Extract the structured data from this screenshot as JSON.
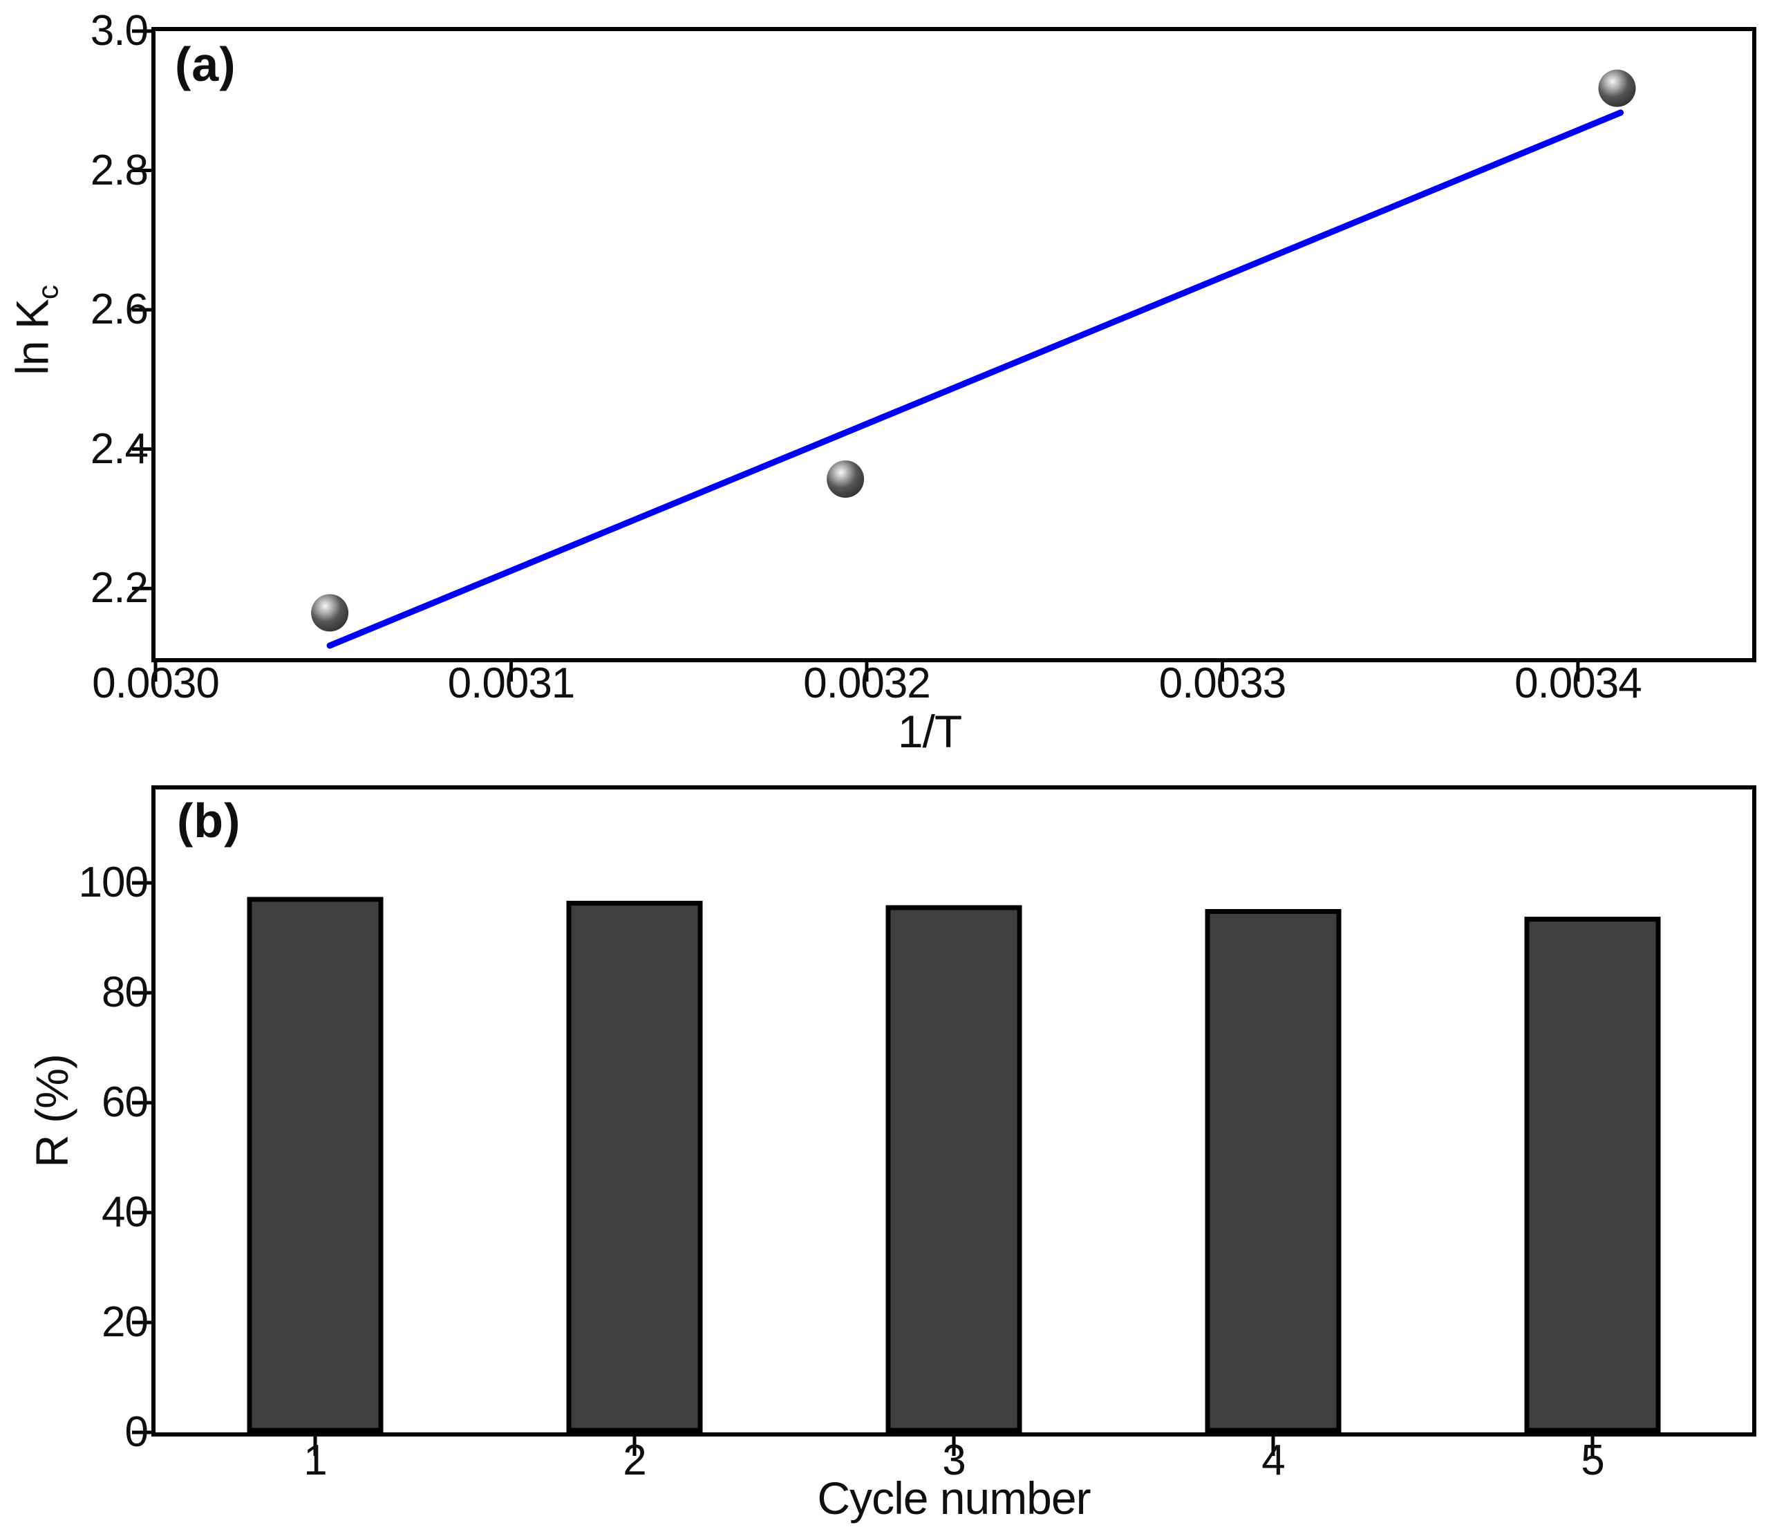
{
  "figure": {
    "background": "#ffffff",
    "axis_color": "#000000",
    "text_color": "#0f0f0f"
  },
  "chart_data": [
    {
      "id": "panel-a",
      "type": "scatter",
      "panel_label": "(a)",
      "xlabel": "1/T",
      "ylabel": {
        "main": "ln K",
        "sub": "c"
      },
      "xlim": [
        0.003,
        0.003449
      ],
      "ylim": [
        2.1,
        3.0
      ],
      "grid": false,
      "x_ticks": [
        {
          "value": 0.003,
          "label": "0.0030"
        },
        {
          "value": 0.0031,
          "label": "0.0031"
        },
        {
          "value": 0.0032,
          "label": "0.0032"
        },
        {
          "value": 0.0033,
          "label": "0.0033"
        },
        {
          "value": 0.0034,
          "label": "0.0034"
        }
      ],
      "y_ticks": [
        {
          "value": 2.2,
          "label": "2.2"
        },
        {
          "value": 2.4,
          "label": "2.4"
        },
        {
          "value": 2.6,
          "label": "2.6"
        },
        {
          "value": 2.8,
          "label": "2.8"
        },
        {
          "value": 3.0,
          "label": "3.0"
        }
      ],
      "points": [
        {
          "x": 0.003049,
          "y": 2.165
        },
        {
          "x": 0.003194,
          "y": 2.357
        },
        {
          "x": 0.003411,
          "y": 2.918
        }
      ],
      "fit_line": {
        "x1": 0.003049,
        "y1": 2.118,
        "x2": 0.003412,
        "y2": 2.883
      },
      "line_color": "#0000f5",
      "marker_colors": {
        "highlight": "#f7f7f7",
        "mid": "#bdbdbd",
        "body": "#565656",
        "edge": "#323232"
      }
    },
    {
      "id": "panel-b",
      "type": "bar",
      "panel_label": "(b)",
      "xlabel": "Cycle number",
      "ylabel": "R (%)",
      "categories": [
        "1",
        "2",
        "3",
        "4",
        "5"
      ],
      "values": [
        97.0,
        96.3,
        95.5,
        94.8,
        93.4
      ],
      "ylim": [
        0,
        117
      ],
      "grid": false,
      "y_ticks": [
        {
          "value": 0,
          "label": "0"
        },
        {
          "value": 20,
          "label": "20"
        },
        {
          "value": 40,
          "label": "40"
        },
        {
          "value": 60,
          "label": "60"
        },
        {
          "value": 80,
          "label": "80"
        },
        {
          "value": 100,
          "label": "100"
        }
      ],
      "bar_fill": "#3f3f41",
      "bar_edge": "#000000"
    }
  ]
}
